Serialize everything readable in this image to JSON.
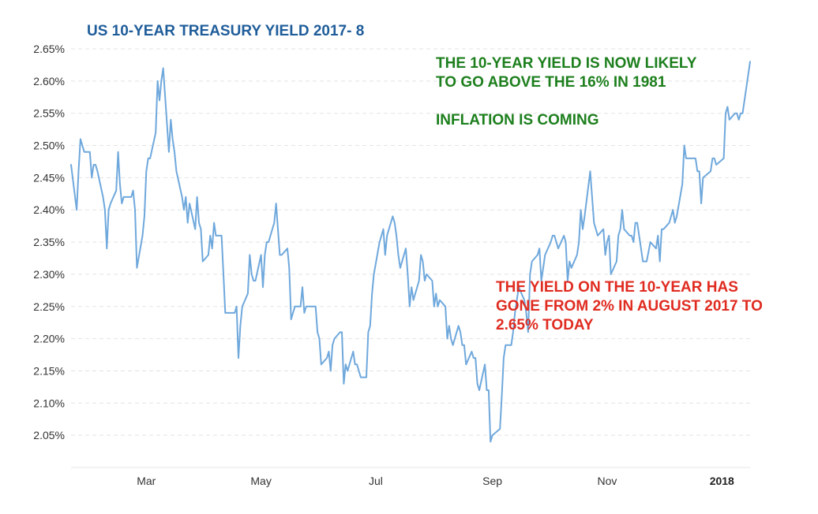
{
  "chart_data": {
    "type": "line",
    "title": "US 10-YEAR TREASURY YIELD 2017- 8",
    "xlabel": "",
    "ylabel": "",
    "ylim": [
      2.0,
      2.65
    ],
    "yticks": [
      2.05,
      2.1,
      2.15,
      2.2,
      2.25,
      2.3,
      2.35,
      2.4,
      2.45,
      2.5,
      2.55,
      2.6,
      2.65
    ],
    "ytick_labels": [
      "2.05%",
      "2.10%",
      "2.15%",
      "2.20%",
      "2.25%",
      "2.30%",
      "2.35%",
      "2.40%",
      "2.45%",
      "2.50%",
      "2.55%",
      "2.60%",
      "2.65%"
    ],
    "xlim": [
      "2017-01-20",
      "2018-01-16"
    ],
    "xticks": [
      {
        "date": "2017-03-01",
        "label": "Mar",
        "bold": false
      },
      {
        "date": "2017-05-01",
        "label": "May",
        "bold": false
      },
      {
        "date": "2017-07-01",
        "label": "Jul",
        "bold": false
      },
      {
        "date": "2017-09-01",
        "label": "Sep",
        "bold": false
      },
      {
        "date": "2017-11-01",
        "label": "Nov",
        "bold": false
      },
      {
        "date": "2018-01-01",
        "label": "2018",
        "bold": true
      }
    ],
    "series": [
      {
        "name": "US 10-Year Treasury Yield",
        "color": "#6fa8dc",
        "x": [
          "2017-01-20",
          "2017-01-23",
          "2017-01-24",
          "2017-01-25",
          "2017-01-26",
          "2017-01-27",
          "2017-01-30",
          "2017-01-31",
          "2017-02-01",
          "2017-02-02",
          "2017-02-03",
          "2017-02-06",
          "2017-02-07",
          "2017-02-08",
          "2017-02-09",
          "2017-02-10",
          "2017-02-13",
          "2017-02-14",
          "2017-02-15",
          "2017-02-16",
          "2017-02-17",
          "2017-02-21",
          "2017-02-22",
          "2017-02-23",
          "2017-02-24",
          "2017-02-27",
          "2017-02-28",
          "2017-03-01",
          "2017-03-02",
          "2017-03-03",
          "2017-03-06",
          "2017-03-07",
          "2017-03-08",
          "2017-03-09",
          "2017-03-10",
          "2017-03-13",
          "2017-03-14",
          "2017-03-15",
          "2017-03-16",
          "2017-03-17",
          "2017-03-20",
          "2017-03-21",
          "2017-03-22",
          "2017-03-23",
          "2017-03-24",
          "2017-03-27",
          "2017-03-28",
          "2017-03-29",
          "2017-03-30",
          "2017-03-31",
          "2017-04-03",
          "2017-04-04",
          "2017-04-05",
          "2017-04-06",
          "2017-04-07",
          "2017-04-10",
          "2017-04-11",
          "2017-04-12",
          "2017-04-13",
          "2017-04-17",
          "2017-04-18",
          "2017-04-19",
          "2017-04-20",
          "2017-04-21",
          "2017-04-24",
          "2017-04-25",
          "2017-04-26",
          "2017-04-27",
          "2017-04-28",
          "2017-05-01",
          "2017-05-02",
          "2017-05-03",
          "2017-05-04",
          "2017-05-05",
          "2017-05-08",
          "2017-05-09",
          "2017-05-10",
          "2017-05-11",
          "2017-05-12",
          "2017-05-15",
          "2017-05-16",
          "2017-05-17",
          "2017-05-18",
          "2017-05-19",
          "2017-05-22",
          "2017-05-23",
          "2017-05-24",
          "2017-05-25",
          "2017-05-26",
          "2017-05-30",
          "2017-05-31",
          "2017-06-01",
          "2017-06-02",
          "2017-06-05",
          "2017-06-06",
          "2017-06-07",
          "2017-06-08",
          "2017-06-09",
          "2017-06-12",
          "2017-06-13",
          "2017-06-14",
          "2017-06-15",
          "2017-06-16",
          "2017-06-19",
          "2017-06-20",
          "2017-06-21",
          "2017-06-22",
          "2017-06-23",
          "2017-06-26",
          "2017-06-27",
          "2017-06-28",
          "2017-06-29",
          "2017-06-30",
          "2017-07-03",
          "2017-07-05",
          "2017-07-06",
          "2017-07-07",
          "2017-07-10",
          "2017-07-11",
          "2017-07-12",
          "2017-07-13",
          "2017-07-14",
          "2017-07-17",
          "2017-07-18",
          "2017-07-19",
          "2017-07-20",
          "2017-07-21",
          "2017-07-24",
          "2017-07-25",
          "2017-07-26",
          "2017-07-27",
          "2017-07-28",
          "2017-07-31",
          "2017-08-01",
          "2017-08-02",
          "2017-08-03",
          "2017-08-04",
          "2017-08-07",
          "2017-08-08",
          "2017-08-09",
          "2017-08-10",
          "2017-08-11",
          "2017-08-14",
          "2017-08-15",
          "2017-08-16",
          "2017-08-17",
          "2017-08-18",
          "2017-08-21",
          "2017-08-22",
          "2017-08-23",
          "2017-08-24",
          "2017-08-25",
          "2017-08-28",
          "2017-08-29",
          "2017-08-30",
          "2017-08-31",
          "2017-09-01",
          "2017-09-05",
          "2017-09-06",
          "2017-09-07",
          "2017-09-08",
          "2017-09-11",
          "2017-09-12",
          "2017-09-13",
          "2017-09-14",
          "2017-09-15",
          "2017-09-18",
          "2017-09-19",
          "2017-09-20",
          "2017-09-21",
          "2017-09-22",
          "2017-09-25",
          "2017-09-26",
          "2017-09-27",
          "2017-09-28",
          "2017-09-29",
          "2017-10-02",
          "2017-10-03",
          "2017-10-04",
          "2017-10-05",
          "2017-10-06",
          "2017-10-09",
          "2017-10-10",
          "2017-10-11",
          "2017-10-12",
          "2017-10-13",
          "2017-10-16",
          "2017-10-17",
          "2017-10-18",
          "2017-10-19",
          "2017-10-20",
          "2017-10-23",
          "2017-10-24",
          "2017-10-25",
          "2017-10-26",
          "2017-10-27",
          "2017-10-30",
          "2017-10-31",
          "2017-11-01",
          "2017-11-02",
          "2017-11-03",
          "2017-11-06",
          "2017-11-07",
          "2017-11-08",
          "2017-11-09",
          "2017-11-10",
          "2017-11-13",
          "2017-11-14",
          "2017-11-15",
          "2017-11-16",
          "2017-11-17",
          "2017-11-20",
          "2017-11-21",
          "2017-11-22",
          "2017-11-24",
          "2017-11-27",
          "2017-11-28",
          "2017-11-29",
          "2017-11-30",
          "2017-12-01",
          "2017-12-04",
          "2017-12-05",
          "2017-12-06",
          "2017-12-07",
          "2017-12-08",
          "2017-12-11",
          "2017-12-12",
          "2017-12-13",
          "2017-12-14",
          "2017-12-15",
          "2017-12-18",
          "2017-12-19",
          "2017-12-20",
          "2017-12-21",
          "2017-12-22",
          "2017-12-26",
          "2017-12-27",
          "2017-12-28",
          "2017-12-29",
          "2018-01-02",
          "2018-01-03",
          "2018-01-04",
          "2018-01-05",
          "2018-01-08",
          "2018-01-09",
          "2018-01-10",
          "2018-01-11",
          "2018-01-12",
          "2018-01-16"
        ],
        "values": [
          2.47,
          2.4,
          2.46,
          2.51,
          2.5,
          2.49,
          2.49,
          2.45,
          2.47,
          2.47,
          2.46,
          2.42,
          2.4,
          2.34,
          2.4,
          2.41,
          2.43,
          2.49,
          2.44,
          2.41,
          2.42,
          2.42,
          2.43,
          2.4,
          2.31,
          2.36,
          2.39,
          2.46,
          2.48,
          2.48,
          2.52,
          2.6,
          2.57,
          2.6,
          2.62,
          2.49,
          2.54,
          2.51,
          2.49,
          2.46,
          2.42,
          2.4,
          2.42,
          2.38,
          2.41,
          2.37,
          2.42,
          2.38,
          2.37,
          2.32,
          2.33,
          2.36,
          2.34,
          2.38,
          2.36,
          2.36,
          2.3,
          2.24,
          2.24,
          2.24,
          2.25,
          2.17,
          2.22,
          2.25,
          2.27,
          2.33,
          2.3,
          2.29,
          2.29,
          2.33,
          2.28,
          2.33,
          2.35,
          2.35,
          2.38,
          2.41,
          2.37,
          2.33,
          2.33,
          2.34,
          2.31,
          2.23,
          2.24,
          2.25,
          2.25,
          2.28,
          2.24,
          2.25,
          2.25,
          2.25,
          2.21,
          2.2,
          2.16,
          2.17,
          2.18,
          2.15,
          2.19,
          2.2,
          2.21,
          2.21,
          2.13,
          2.16,
          2.15,
          2.18,
          2.16,
          2.16,
          2.15,
          2.14,
          2.14,
          2.21,
          2.22,
          2.27,
          2.3,
          2.35,
          2.37,
          2.33,
          2.36,
          2.39,
          2.38,
          2.36,
          2.33,
          2.31,
          2.34,
          2.3,
          2.25,
          2.28,
          2.26,
          2.29,
          2.33,
          2.32,
          2.29,
          2.3,
          2.29,
          2.25,
          2.27,
          2.25,
          2.26,
          2.25,
          2.2,
          2.22,
          2.2,
          2.19,
          2.22,
          2.21,
          2.19,
          2.19,
          2.16,
          2.18,
          2.17,
          2.17,
          2.13,
          2.12,
          2.16,
          2.12,
          2.12,
          2.04,
          2.05,
          2.06,
          2.11,
          2.17,
          2.19,
          2.19,
          2.21,
          2.24,
          2.26,
          2.28,
          2.26,
          2.24,
          2.21,
          2.3,
          2.32,
          2.33,
          2.34,
          2.29,
          2.31,
          2.33,
          2.35,
          2.36,
          2.36,
          2.35,
          2.34,
          2.36,
          2.35,
          2.29,
          2.32,
          2.31,
          2.33,
          2.35,
          2.4,
          2.37,
          2.39,
          2.46,
          2.42,
          2.38,
          2.37,
          2.36,
          2.37,
          2.33,
          2.35,
          2.36,
          2.3,
          2.32,
          2.36,
          2.37,
          2.4,
          2.37,
          2.36,
          2.36,
          2.35,
          2.38,
          2.38,
          2.32,
          2.32,
          2.32,
          2.35,
          2.34,
          2.36,
          2.32,
          2.37,
          2.37,
          2.38,
          2.39,
          2.4,
          2.38,
          2.39,
          2.44,
          2.5,
          2.48,
          2.48,
          2.48,
          2.48,
          2.46,
          2.46,
          2.41,
          2.45,
          2.46,
          2.48,
          2.48,
          2.47,
          2.48,
          2.55,
          2.56,
          2.54,
          2.55,
          2.55,
          2.54,
          2.55,
          2.55,
          2.63
        ]
      }
    ],
    "annotations": [
      {
        "lines": [
          "THE 10-YEAR YIELD IS NOW  LIKELY",
          "TO GO ABOVE THE 16% IN 1981",
          "",
          "INFLATION IS COMING"
        ],
        "color": "#1d7f1d"
      },
      {
        "lines": [
          "THE YIELD ON THE 10-YEAR HAS",
          "GONE FROM 2% IN AUGUST 2017 TO",
          "2.65% TODAY"
        ],
        "color": "#e02b20"
      }
    ]
  }
}
